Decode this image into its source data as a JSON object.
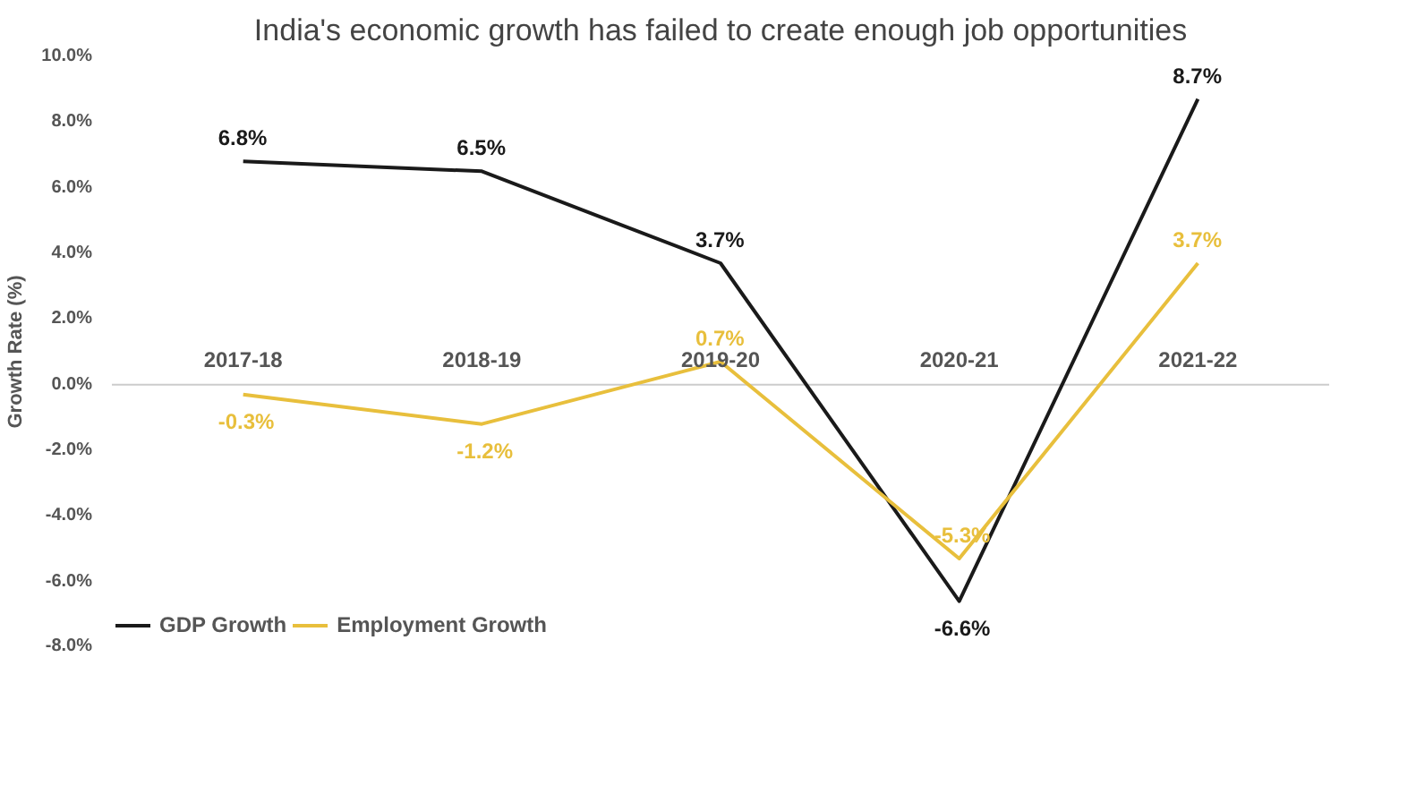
{
  "chart_data": {
    "type": "line",
    "title": "India's economic growth has failed to create enough job opportunities",
    "ylabel": "Growth Rate (%)",
    "categories": [
      "2017-18",
      "2018-19",
      "2019-20",
      "2020-21",
      "2021-22"
    ],
    "series": [
      {
        "name": "GDP Growth",
        "color": "#1a1a1a",
        "values": [
          6.8,
          6.5,
          3.7,
          -6.6,
          8.7
        ],
        "value_labels": [
          "6.8%",
          "6.5%",
          "3.7%",
          "-6.6%",
          "8.7%"
        ]
      },
      {
        "name": "Employment Growth",
        "color": "#e8bf3c",
        "values": [
          -0.3,
          -1.2,
          0.7,
          -5.3,
          3.7
        ],
        "value_labels": [
          "-0.3%",
          "-1.2%",
          "0.7%",
          "-5.3%",
          "3.7%"
        ]
      }
    ],
    "ylim": [
      -8,
      10
    ],
    "yticks": [
      {
        "value": -8,
        "label": "-8.0%"
      },
      {
        "value": -6,
        "label": "-6.0%"
      },
      {
        "value": -4,
        "label": "-4.0%"
      },
      {
        "value": -2,
        "label": "-2.0%"
      },
      {
        "value": 0,
        "label": "0.0%"
      },
      {
        "value": 2,
        "label": "2.0%"
      },
      {
        "value": 4,
        "label": "4.0%"
      },
      {
        "value": 6,
        "label": "6.0%"
      },
      {
        "value": 8,
        "label": "8.0%"
      },
      {
        "value": 10,
        "label": "10.0%"
      }
    ],
    "grid": false,
    "legend": "bottom",
    "marker": "none",
    "line_style": "solid"
  }
}
